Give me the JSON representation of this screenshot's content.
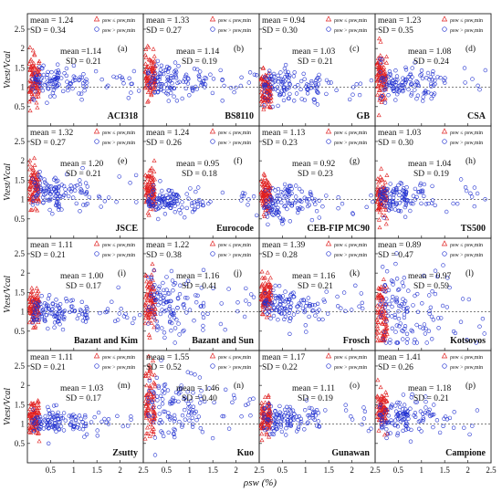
{
  "figure": {
    "xlabel": "ρsw (%)",
    "ylabel": "Vtest/Vcal",
    "x_ticks": [
      "0.5",
      "1",
      "1.5",
      "2",
      "2.5"
    ],
    "y_ticks": [
      "0.5",
      "1",
      "1.5",
      "2",
      "2.5"
    ],
    "xlim": [
      0,
      2.5
    ],
    "ylim": [
      0,
      2.9
    ],
    "reference_line": 1,
    "legend": {
      "red_label": "ρsw ≤ ρsw,min",
      "blue_label": "ρsw > ρsw,min",
      "red_color": "#e02020",
      "blue_color": "#2030d0"
    }
  },
  "chart_data": [
    {
      "type": "scatter",
      "code": "ACI318",
      "tag": "(a)",
      "red_stat": {
        "mean": "mean = 1.24",
        "sd": "SD = 0.34"
      },
      "blue_stat": {
        "mean": "mean =1.14",
        "sd": "SD = 0.21"
      }
    },
    {
      "type": "scatter",
      "code": "BS8110",
      "tag": "(b)",
      "red_stat": {
        "mean": "mean = 1.33",
        "sd": "SD = 0.27"
      },
      "blue_stat": {
        "mean": "mean = 1.14",
        "sd": "SD = 0.19"
      }
    },
    {
      "type": "scatter",
      "code": "GB",
      "tag": "(c)",
      "red_stat": {
        "mean": "mean = 0.94",
        "sd": "SD = 0.30"
      },
      "blue_stat": {
        "mean": "mean = 1.03",
        "sd": "SD = 0.21"
      }
    },
    {
      "type": "scatter",
      "code": "CSA",
      "tag": "(d)",
      "red_stat": {
        "mean": "mean = 1.23",
        "sd": "SD = 0.35"
      },
      "blue_stat": {
        "mean": "mean = 1.08",
        "sd": "SD = 0.24"
      }
    },
    {
      "type": "scatter",
      "code": "JSCE",
      "tag": "(e)",
      "red_stat": {
        "mean": "mean = 1.32",
        "sd": "SD = 0.27"
      },
      "blue_stat": {
        "mean": "mean = 1.20",
        "sd": "SD = 0.21"
      }
    },
    {
      "type": "scatter",
      "code": "Eurocode",
      "tag": "(f)",
      "red_stat": {
        "mean": "mean = 1.24",
        "sd": "SD = 0.26"
      },
      "blue_stat": {
        "mean": "mean = 0.95",
        "sd": "SD = 0.18"
      }
    },
    {
      "type": "scatter",
      "code": "CEB-FIP MC90",
      "tag": "(g)",
      "red_stat": {
        "mean": "mean = 1.13",
        "sd": "SD = 0.23"
      },
      "blue_stat": {
        "mean": "mean = 0.92",
        "sd": "SD = 0.23"
      }
    },
    {
      "type": "scatter",
      "code": "TS500",
      "tag": "(h)",
      "red_stat": {
        "mean": "mean = 1.03",
        "sd": "SD = 0.30"
      },
      "blue_stat": {
        "mean": "mean = 1.04",
        "sd": "SD = 0.19"
      }
    },
    {
      "type": "scatter",
      "code": "Bazant and Kim",
      "tag": "(i)",
      "red_stat": {
        "mean": "mean = 1.11",
        "sd": "SD = 0.21"
      },
      "blue_stat": {
        "mean": "mean = 1.00",
        "sd": "SD = 0.17"
      }
    },
    {
      "type": "scatter",
      "code": "Bazant and Sun",
      "tag": "(j)",
      "red_stat": {
        "mean": "mean = 1.22",
        "sd": "SD = 0.38"
      },
      "blue_stat": {
        "mean": "mean = 1.16",
        "sd": "SD = 0.41"
      }
    },
    {
      "type": "scatter",
      "code": "Frosch",
      "tag": "(k)",
      "red_stat": {
        "mean": "mean = 1.39",
        "sd": "SD = 0.28"
      },
      "blue_stat": {
        "mean": "mean = 1.16",
        "sd": "SD = 0.21"
      }
    },
    {
      "type": "scatter",
      "code": "Kotsovos",
      "tag": "(l)",
      "red_stat": {
        "mean": "mean = 0.89",
        "sd": "SD = 0.47"
      },
      "blue_stat": {
        "mean": "mean = 0.97",
        "sd": "SD = 0.59"
      }
    },
    {
      "type": "scatter",
      "code": "Zsutty",
      "tag": "(m)",
      "red_stat": {
        "mean": "mean = 1.11",
        "sd": "SD = 0.21"
      },
      "blue_stat": {
        "mean": "mean = 1.03",
        "sd": "SD = 0.17"
      }
    },
    {
      "type": "scatter",
      "code": "Kuo",
      "tag": "(n)",
      "red_stat": {
        "mean": "mean = 1.55",
        "sd": "SD = 0.52"
      },
      "blue_stat": {
        "mean": "mean = 1.46",
        "sd": "SD = 0.40"
      }
    },
    {
      "type": "scatter",
      "code": "Gunawan",
      "tag": "(o)",
      "red_stat": {
        "mean": "mean = 1.17",
        "sd": "SD = 0.22"
      },
      "blue_stat": {
        "mean": "mean = 1.11",
        "sd": "SD = 0.19"
      }
    },
    {
      "type": "scatter",
      "code": "Campione",
      "tag": "(p)",
      "red_stat": {
        "mean": "mean = 1.41",
        "sd": "SD = 0.26"
      },
      "blue_stat": {
        "mean": "mean = 1.18",
        "sd": "SD = 0.21"
      }
    }
  ]
}
